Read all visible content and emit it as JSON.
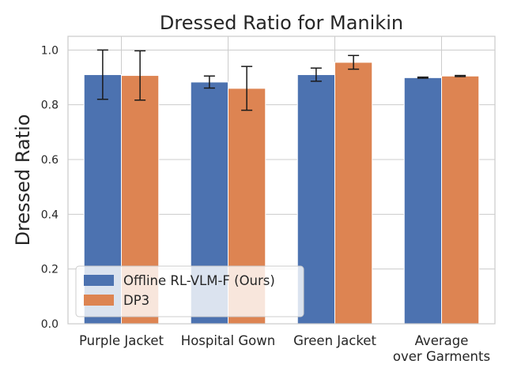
{
  "chart_data": {
    "type": "bar",
    "title": "Dressed Ratio for Manikin",
    "xlabel": "",
    "ylabel": "Dressed Ratio",
    "categories": [
      "Purple Jacket",
      "Hospital Gown",
      "Green Jacket",
      "Average over Garments"
    ],
    "category_lines": [
      [
        "Purple Jacket"
      ],
      [
        "Hospital Gown"
      ],
      [
        "Green Jacket"
      ],
      [
        "Average",
        "over Garments"
      ]
    ],
    "series": [
      {
        "name": "Offline RL-VLM-F (Ours)",
        "color": "#4c72b0",
        "values": [
          0.91,
          0.883,
          0.91,
          0.899
        ],
        "errors": [
          0.09,
          0.022,
          0.024,
          0.002
        ]
      },
      {
        "name": "DP3",
        "color": "#dd8452",
        "values": [
          0.907,
          0.86,
          0.955,
          0.905
        ],
        "errors": [
          0.09,
          0.08,
          0.025,
          0.002
        ]
      }
    ],
    "ylim": [
      0,
      1.05
    ],
    "yticks": [
      0.0,
      0.2,
      0.4,
      0.6,
      0.8,
      1.0
    ],
    "ytick_labels": [
      "0.0",
      "0.2",
      "0.4",
      "0.6",
      "0.8",
      "1.0"
    ],
    "grid": true,
    "legend_position": "lower-left"
  }
}
